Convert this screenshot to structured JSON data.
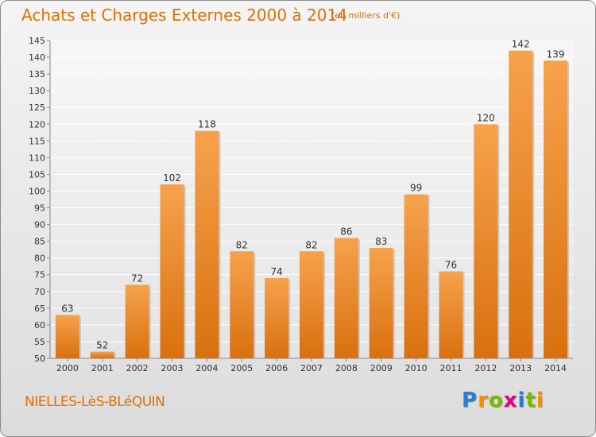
{
  "title": "Achats et Charges Externes 2000 à 2014",
  "subtitle": "(en milliers d'€)",
  "town": "NIELLES-LèS-BLéQUIN",
  "logo": {
    "text": "Proxiti",
    "letters": [
      "P",
      "r",
      "o",
      "x",
      "i",
      "t",
      "i"
    ],
    "colors": [
      "#2a7fd4",
      "#f29100",
      "#7ab800",
      "#e4007c",
      "#2a7fd4",
      "#7ab800",
      "#f29100"
    ]
  },
  "chart_data": {
    "type": "bar",
    "categories": [
      "2000",
      "2001",
      "2002",
      "2003",
      "2004",
      "2005",
      "2006",
      "2007",
      "2008",
      "2009",
      "2010",
      "2011",
      "2012",
      "2013",
      "2014"
    ],
    "values": [
      63,
      52,
      72,
      102,
      118,
      82,
      74,
      82,
      86,
      83,
      99,
      76,
      120,
      142,
      139
    ],
    "ylim": [
      50,
      145
    ],
    "yticks": [
      50,
      55,
      60,
      65,
      70,
      75,
      80,
      85,
      90,
      95,
      100,
      105,
      110,
      115,
      120,
      125,
      130,
      135,
      140,
      145
    ],
    "bar_color": "#f28c28",
    "grid": true,
    "xlabel": "",
    "ylabel": ""
  }
}
